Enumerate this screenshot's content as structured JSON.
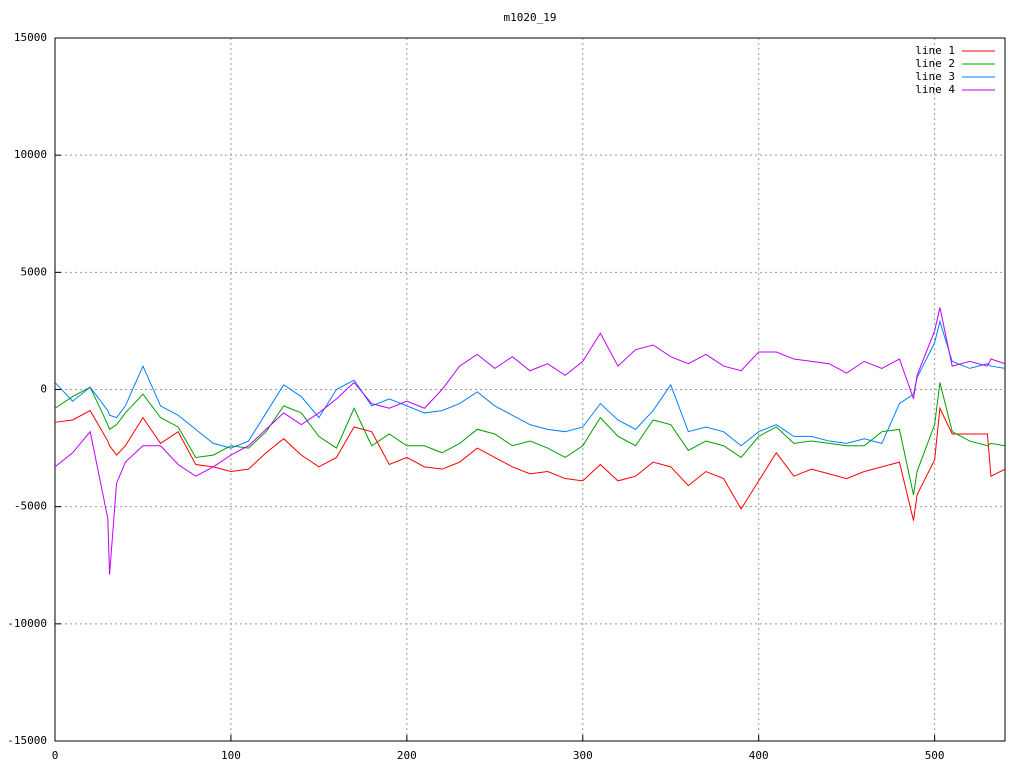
{
  "chart_data": {
    "type": "line",
    "title": "m1020_19",
    "x": [
      0,
      10,
      20,
      30,
      31,
      35,
      40,
      50,
      60,
      70,
      80,
      90,
      100,
      110,
      120,
      130,
      140,
      150,
      160,
      170,
      180,
      190,
      200,
      210,
      220,
      230,
      240,
      250,
      260,
      270,
      280,
      290,
      300,
      310,
      320,
      330,
      340,
      350,
      360,
      370,
      380,
      390,
      400,
      410,
      420,
      430,
      440,
      450,
      460,
      470,
      480,
      488,
      490,
      500,
      503,
      510,
      520,
      530,
      532,
      540
    ],
    "series": [
      {
        "name": "line 1",
        "color": "#ff0000",
        "values": [
          -1400,
          -1300,
          -900,
          -2200,
          -2400,
          -2800,
          -2400,
          -1200,
          -2300,
          -1800,
          -3200,
          -3300,
          -3500,
          -3400,
          -2700,
          -2100,
          -2800,
          -3300,
          -2900,
          -1600,
          -1800,
          -3200,
          -2900,
          -3300,
          -3400,
          -3100,
          -2500,
          -2900,
          -3300,
          -3600,
          -3500,
          -3800,
          -3900,
          -3200,
          -3900,
          -3700,
          -3100,
          -3300,
          -4100,
          -3500,
          -3800,
          -5100,
          -3900,
          -2700,
          -3700,
          -3400,
          -3600,
          -3800,
          -3500,
          -3300,
          -3100,
          -5600,
          -4500,
          -3000,
          -800,
          -1900,
          -1900,
          -1900,
          -3700,
          -3400
        ]
      },
      {
        "name": "line 2",
        "color": "#00a000",
        "values": [
          -800,
          -300,
          100,
          -1500,
          -1700,
          -1500,
          -1000,
          -200,
          -1200,
          -1600,
          -2900,
          -2800,
          -2400,
          -2500,
          -1800,
          -700,
          -1000,
          -2000,
          -2500,
          -800,
          -2400,
          -1900,
          -2400,
          -2400,
          -2700,
          -2300,
          -1700,
          -1900,
          -2400,
          -2200,
          -2500,
          -2900,
          -2400,
          -1200,
          -2000,
          -2400,
          -1300,
          -1500,
          -2600,
          -2200,
          -2400,
          -2900,
          -2000,
          -1600,
          -2300,
          -2200,
          -2300,
          -2400,
          -2400,
          -1800,
          -1700,
          -4500,
          -3500,
          -1500,
          300,
          -1800,
          -2200,
          -2400,
          -2300,
          -2400
        ]
      },
      {
        "name": "line 3",
        "color": "#0080ff",
        "values": [
          300,
          -500,
          100,
          -900,
          -1100,
          -1200,
          -700,
          1000,
          -700,
          -1100,
          -1700,
          -2300,
          -2500,
          -2200,
          -1000,
          200,
          -300,
          -1200,
          0,
          400,
          -700,
          -400,
          -700,
          -1000,
          -900,
          -600,
          -100,
          -700,
          -1100,
          -1500,
          -1700,
          -1800,
          -1600,
          -600,
          -1300,
          -1700,
          -900,
          200,
          -1800,
          -1600,
          -1800,
          -2400,
          -1800,
          -1500,
          -2000,
          -2000,
          -2200,
          -2300,
          -2100,
          -2300,
          -600,
          -200,
          500,
          2000,
          2900,
          1200,
          900,
          1100,
          1000,
          900
        ]
      },
      {
        "name": "line 4",
        "color": "#c000ff",
        "values": [
          -3300,
          -2700,
          -1800,
          -5500,
          -7900,
          -4000,
          -3100,
          -2400,
          -2400,
          -3200,
          -3700,
          -3300,
          -2800,
          -2400,
          -1700,
          -1000,
          -1500,
          -1000,
          -400,
          300,
          -600,
          -800,
          -500,
          -800,
          0,
          1000,
          1500,
          900,
          1400,
          800,
          1100,
          600,
          1200,
          2400,
          1000,
          1700,
          1900,
          1400,
          1100,
          1500,
          1000,
          800,
          1600,
          1600,
          1300,
          1200,
          1100,
          700,
          1200,
          900,
          1300,
          -400,
          600,
          2500,
          3500,
          1000,
          1200,
          1000,
          1300,
          1100
        ]
      }
    ],
    "xlim": [
      0,
      540
    ],
    "xticks": [
      0,
      100,
      200,
      300,
      400,
      500
    ],
    "ylim": [
      -15000,
      15000
    ],
    "yticks": [
      -15000,
      -10000,
      -5000,
      0,
      5000,
      10000,
      15000
    ],
    "grid": true,
    "legend": "top-right"
  }
}
